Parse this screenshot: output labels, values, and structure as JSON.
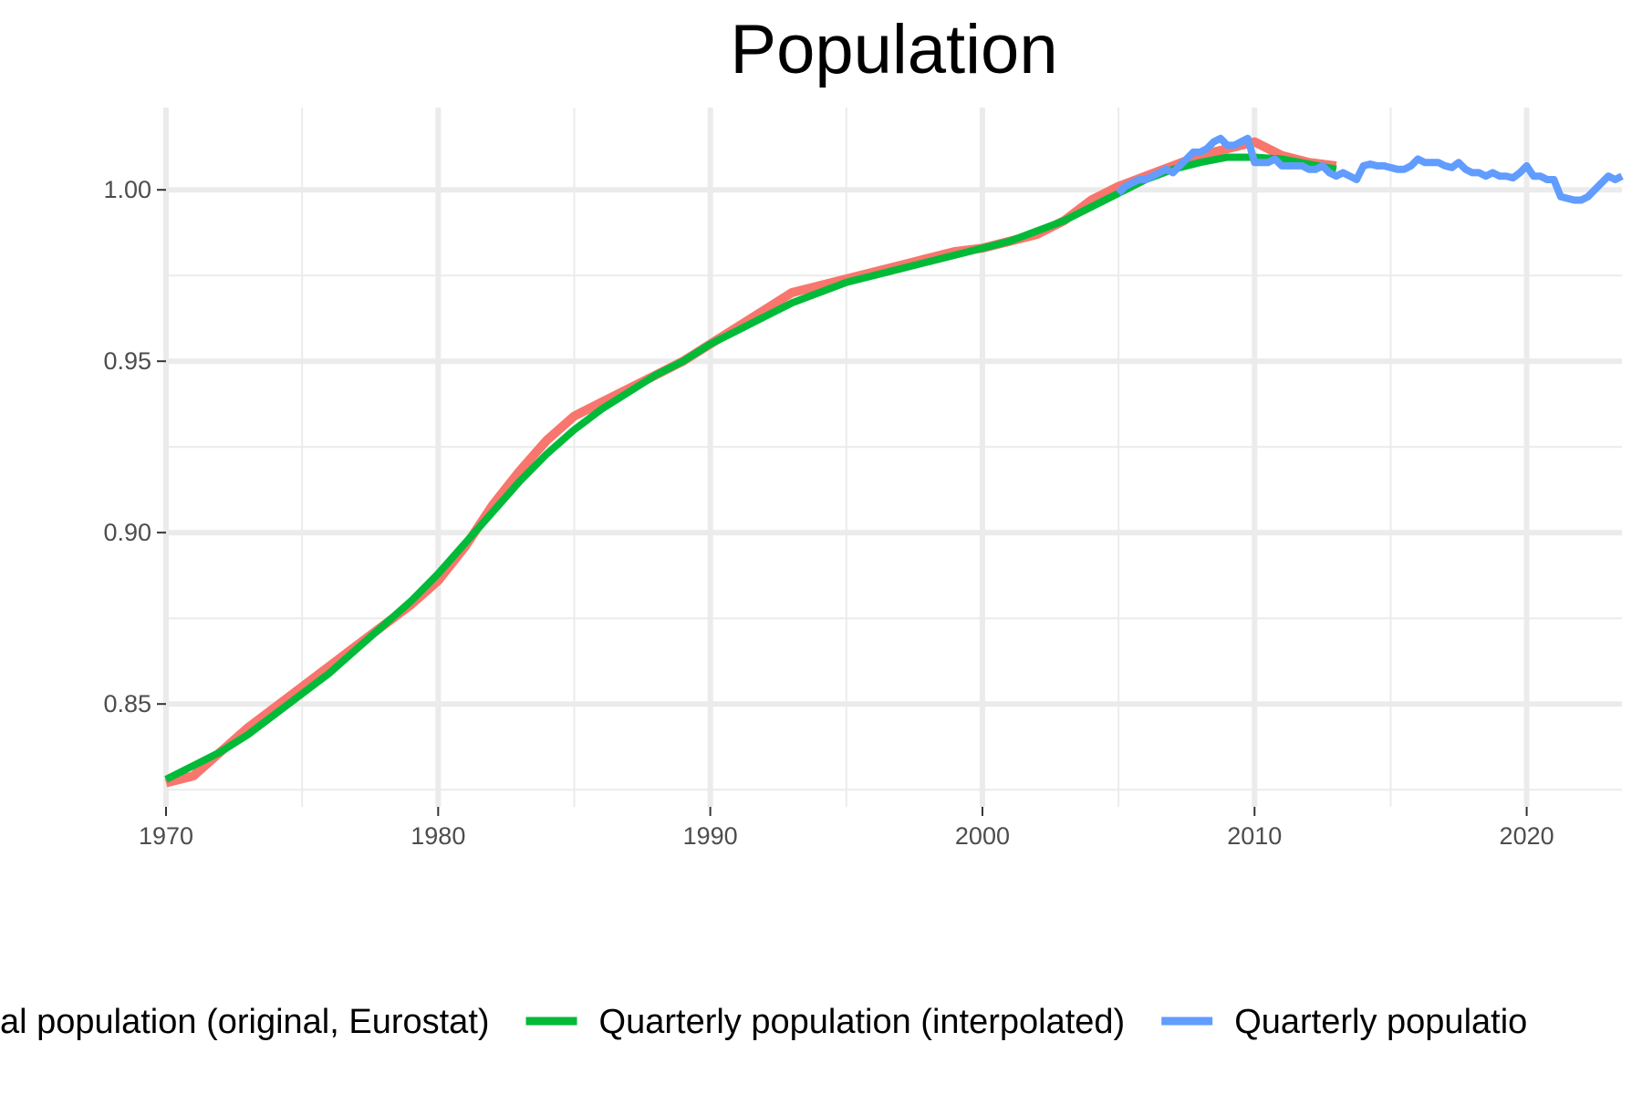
{
  "chart_data": {
    "type": "line",
    "title": "Population",
    "xlabel": "",
    "ylabel": "",
    "xlim": [
      1970,
      2023.5
    ],
    "ylim": [
      0.82,
      1.024
    ],
    "x_ticks": [
      1970,
      1980,
      1990,
      2000,
      2010,
      2020
    ],
    "x_tick_labels": [
      "1970",
      "1980",
      "1990",
      "2000",
      "2010",
      "2020"
    ],
    "y_ticks": [
      0.85,
      0.9,
      0.95,
      1.0
    ],
    "y_tick_labels": [
      "0.85",
      "0.90",
      "0.95",
      "1.00"
    ],
    "grid": true,
    "legend_position": "bottom",
    "series": [
      {
        "name": "Annual population (original, Eurostat)",
        "legend_label": "al population (original, Eurostat)",
        "color": "#F8766D",
        "x": [
          1970,
          1971,
          1972,
          1973,
          1974,
          1975,
          1976,
          1977,
          1978,
          1979,
          1980,
          1981,
          1982,
          1983,
          1984,
          1985,
          1986,
          1987,
          1988,
          1989,
          1990,
          1991,
          1992,
          1993,
          1994,
          1995,
          1996,
          1997,
          1998,
          1999,
          2000,
          2001,
          2002,
          2003,
          2004,
          2005,
          2006,
          2007,
          2008,
          2009,
          2010,
          2011,
          2012,
          2013
        ],
        "values": [
          0.827,
          0.829,
          0.836,
          0.843,
          0.849,
          0.855,
          0.861,
          0.867,
          0.873,
          0.879,
          0.886,
          0.896,
          0.908,
          0.918,
          0.927,
          0.934,
          0.938,
          0.942,
          0.946,
          0.95,
          0.955,
          0.96,
          0.965,
          0.97,
          0.972,
          0.974,
          0.976,
          0.978,
          0.98,
          0.982,
          0.983,
          0.985,
          0.987,
          0.991,
          0.997,
          1.001,
          1.004,
          1.007,
          1.01,
          1.012,
          1.014,
          1.01,
          1.008,
          1.007
        ]
      },
      {
        "name": "Quarterly population (interpolated)",
        "legend_label": "Quarterly population (interpolated)",
        "color": "#00BA38",
        "x": [
          1970,
          1971,
          1972,
          1973,
          1974,
          1975,
          1976,
          1977,
          1978,
          1979,
          1980,
          1981,
          1982,
          1983,
          1984,
          1985,
          1986,
          1987,
          1988,
          1989,
          1990,
          1991,
          1992,
          1993,
          1994,
          1995,
          1996,
          1997,
          1998,
          1999,
          2000,
          2001,
          2002,
          2003,
          2004,
          2005,
          2006,
          2007,
          2008,
          2009,
          2010,
          2011,
          2012,
          2013
        ],
        "values": [
          0.828,
          0.832,
          0.836,
          0.841,
          0.847,
          0.853,
          0.859,
          0.866,
          0.873,
          0.88,
          0.888,
          0.897,
          0.906,
          0.915,
          0.923,
          0.93,
          0.936,
          0.941,
          0.946,
          0.95,
          0.955,
          0.959,
          0.963,
          0.967,
          0.97,
          0.973,
          0.975,
          0.977,
          0.979,
          0.981,
          0.983,
          0.985,
          0.988,
          0.991,
          0.995,
          0.999,
          1.003,
          1.006,
          1.008,
          1.0095,
          1.0095,
          1.009,
          1.0075,
          1.006
        ]
      },
      {
        "name": "Quarterly population",
        "legend_label": "Quarterly populatio",
        "color": "#619CFF",
        "x": [
          2005.0,
          2005.25,
          2005.5,
          2005.75,
          2006.0,
          2006.25,
          2006.5,
          2006.75,
          2007.0,
          2007.25,
          2007.5,
          2007.75,
          2008.0,
          2008.25,
          2008.5,
          2008.75,
          2009.0,
          2009.25,
          2009.5,
          2009.75,
          2010.0,
          2010.25,
          2010.5,
          2010.75,
          2011.0,
          2011.25,
          2011.5,
          2011.75,
          2012.0,
          2012.25,
          2012.5,
          2012.75,
          2013.0,
          2013.25,
          2013.5,
          2013.75,
          2014.0,
          2014.25,
          2014.5,
          2014.75,
          2015.0,
          2015.25,
          2015.5,
          2015.75,
          2016.0,
          2016.25,
          2016.5,
          2016.75,
          2017.0,
          2017.25,
          2017.5,
          2017.75,
          2018.0,
          2018.25,
          2018.5,
          2018.75,
          2019.0,
          2019.25,
          2019.5,
          2019.75,
          2020.0,
          2020.25,
          2020.5,
          2020.75,
          2021.0,
          2021.25,
          2021.5,
          2021.75,
          2022.0,
          2022.25,
          2022.5,
          2022.75,
          2023.0,
          2023.25,
          2023.5
        ],
        "values": [
          0.999,
          1.001,
          1.002,
          1.003,
          1.003,
          1.004,
          1.005,
          1.006,
          1.005,
          1.007,
          1.009,
          1.011,
          1.011,
          1.012,
          1.014,
          1.015,
          1.013,
          1.013,
          1.014,
          1.015,
          1.008,
          1.008,
          1.008,
          1.009,
          1.007,
          1.007,
          1.007,
          1.007,
          1.006,
          1.006,
          1.007,
          1.005,
          1.004,
          1.005,
          1.004,
          1.003,
          1.007,
          1.0075,
          1.007,
          1.007,
          1.0065,
          1.006,
          1.006,
          1.007,
          1.009,
          1.008,
          1.008,
          1.008,
          1.007,
          1.0065,
          1.008,
          1.006,
          1.005,
          1.005,
          1.004,
          1.005,
          1.004,
          1.004,
          1.0035,
          1.005,
          1.007,
          1.004,
          1.004,
          1.003,
          1.003,
          0.998,
          0.9975,
          0.997,
          0.997,
          0.998,
          1.0,
          1.002,
          1.004,
          1.003,
          1.004
        ]
      }
    ]
  }
}
